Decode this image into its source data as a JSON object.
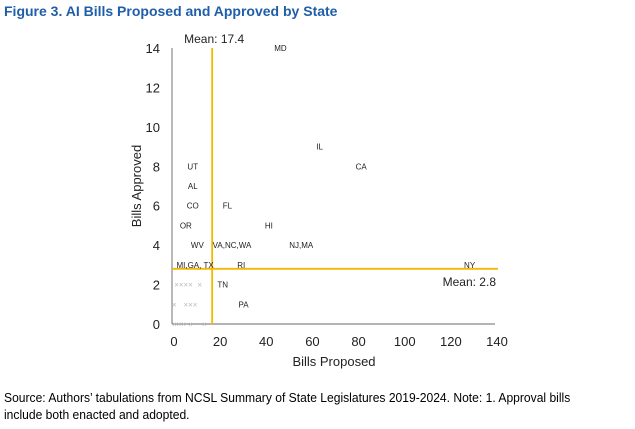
{
  "figure_title": "Figure 3. AI Bills Proposed and Approved by State",
  "source_note": "Source: Authors’ tabulations from NCSL Summary of State Legislatures 2019-2024. Note: 1. Approval bills include both enacted and adopted.",
  "chart_data": {
    "type": "scatter",
    "title": "Figure 3. AI Bills Proposed and Approved by State",
    "xlabel": "Bills Proposed",
    "ylabel": "Bills Approved",
    "xlim": [
      0,
      140
    ],
    "ylim": [
      0,
      14
    ],
    "x_ticks": [
      0,
      20,
      40,
      60,
      80,
      100,
      120,
      140
    ],
    "y_ticks": [
      0,
      2,
      4,
      6,
      8,
      10,
      12,
      14
    ],
    "grid": false,
    "mean_lines": [
      {
        "axis": "x",
        "value": 17.4,
        "label": "Mean: 17.4",
        "color": "#f5b800"
      },
      {
        "axis": "y",
        "value": 2.8,
        "label": "Mean: 2.8",
        "color": "#f5b800"
      }
    ],
    "points": [
      {
        "label": "MD",
        "x": 47,
        "y": 14
      },
      {
        "label": "IL",
        "x": 64,
        "y": 9
      },
      {
        "label": "CA",
        "x": 82,
        "y": 8
      },
      {
        "label": "UT",
        "x": 9,
        "y": 8
      },
      {
        "label": "AL",
        "x": 9,
        "y": 7
      },
      {
        "label": "CO",
        "x": 9,
        "y": 6
      },
      {
        "label": "FL",
        "x": 24,
        "y": 6
      },
      {
        "label": "OR",
        "x": 6,
        "y": 5
      },
      {
        "label": "HI",
        "x": 42,
        "y": 5
      },
      {
        "label": "WV",
        "x": 11,
        "y": 4
      },
      {
        "label": "VA,NC,WA",
        "x": 26,
        "y": 4
      },
      {
        "label": "NJ,MA",
        "x": 56,
        "y": 4
      },
      {
        "label": "MI,GA, TX",
        "x": 10,
        "y": 3
      },
      {
        "label": "RI",
        "x": 30,
        "y": 3
      },
      {
        "label": "NY",
        "x": 129,
        "y": 3
      },
      {
        "label": "TN",
        "x": 22,
        "y": 2
      },
      {
        "label": "PA",
        "x": 31,
        "y": 1
      }
    ],
    "unlabeled_markers": [
      {
        "x": 2,
        "y": 2
      },
      {
        "x": 4,
        "y": 2
      },
      {
        "x": 6,
        "y": 2
      },
      {
        "x": 8,
        "y": 2
      },
      {
        "x": 12,
        "y": 2
      },
      {
        "x": 1,
        "y": 1
      },
      {
        "x": 6,
        "y": 1
      },
      {
        "x": 8,
        "y": 1
      },
      {
        "x": 10,
        "y": 1
      },
      {
        "x": 1,
        "y": 0
      },
      {
        "x": 3,
        "y": 0
      },
      {
        "x": 5,
        "y": 0
      },
      {
        "x": 8,
        "y": 0
      },
      {
        "x": 14,
        "y": 0
      }
    ],
    "marker_color": "#bbbbbb",
    "axis_color": "#888888"
  }
}
